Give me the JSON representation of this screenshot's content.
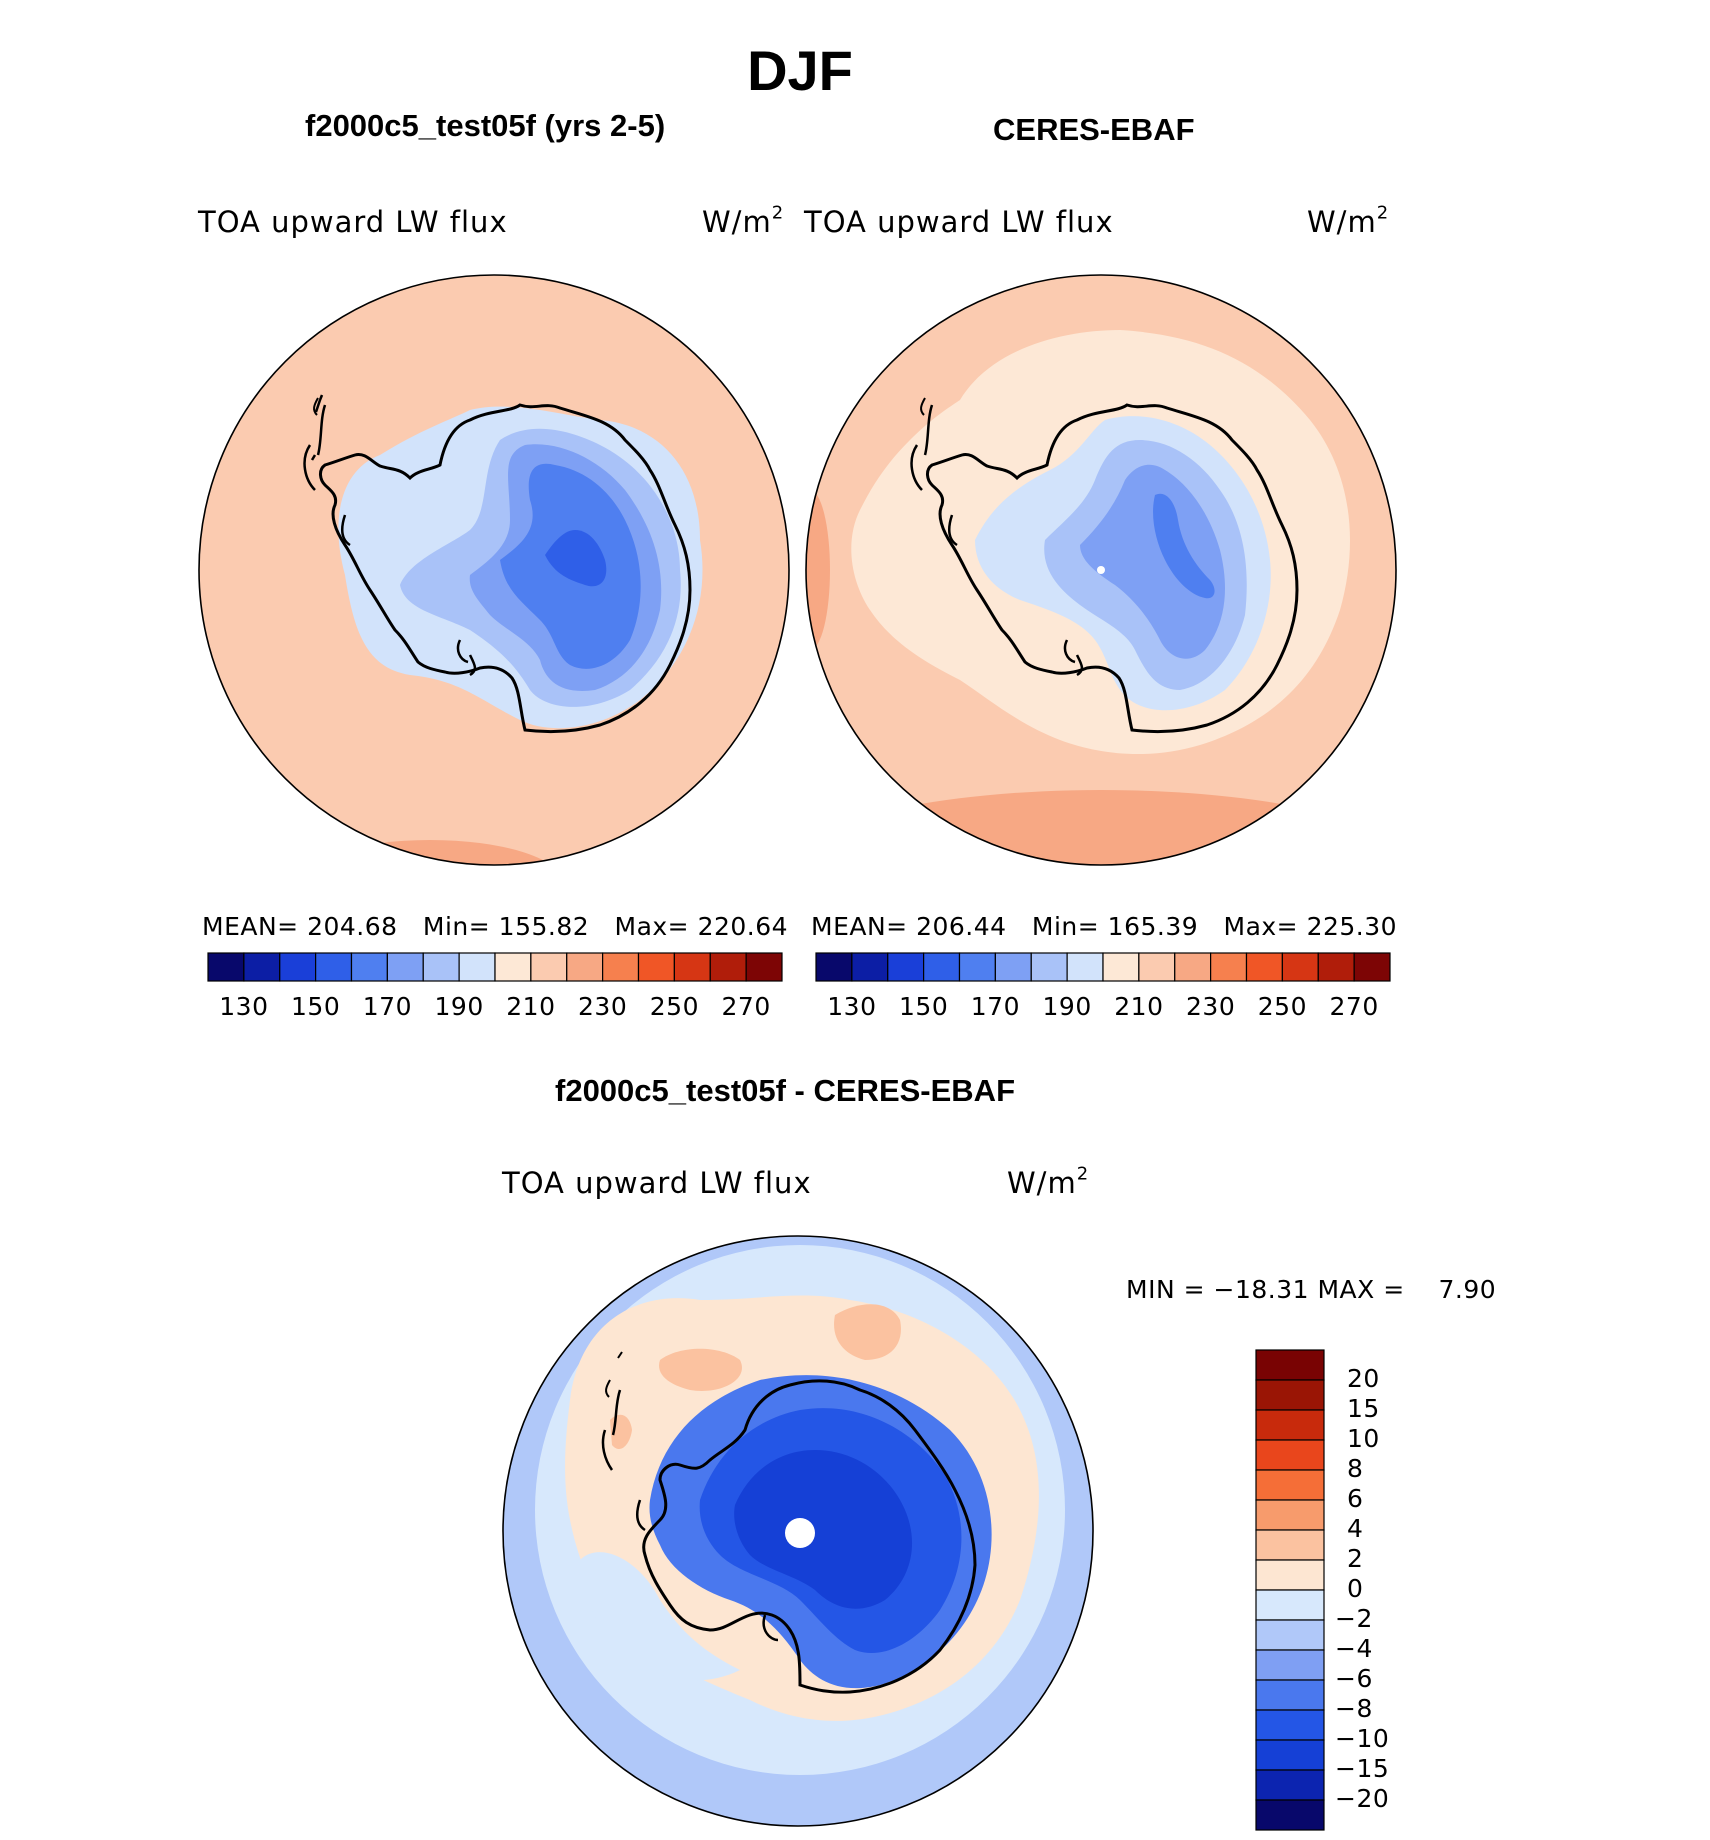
{
  "figure": {
    "title": "DJF"
  },
  "panels": [
    {
      "id": "model",
      "title": "f2000c5_test05f (yrs 2-5)",
      "variable": "TOA upward LW flux",
      "units": "W/m",
      "units_sup": "2",
      "stats": {
        "mean_label": "MEAN=",
        "mean": "204.68",
        "min_label": "Min=",
        "min": "155.82",
        "max_label": "Max=",
        "max": "220.64"
      }
    },
    {
      "id": "obs",
      "title": "CERES-EBAF",
      "variable": "TOA upward LW flux",
      "units": "W/m",
      "units_sup": "2",
      "stats": {
        "mean_label": "MEAN=",
        "mean": "206.44",
        "min_label": "Min=",
        "min": "165.39",
        "max_label": "Max=",
        "max": "225.30"
      }
    },
    {
      "id": "diff",
      "title": "f2000c5_test05f - CERES-EBAF",
      "variable": "TOA upward LW flux",
      "units": "W/m",
      "units_sup": "2",
      "stats": {
        "min_label": "MIN =",
        "min": "−18.31",
        "max_label": "MAX =",
        "max": "7.90"
      }
    }
  ],
  "colorbar_abs": {
    "colors": [
      "#08086b",
      "#0c1ea5",
      "#1a3fd8",
      "#2f5fe8",
      "#4f7ff0",
      "#7ea0f4",
      "#a9c2f8",
      "#d2e3fb",
      "#fde8d6",
      "#fbcbb0",
      "#f7a884",
      "#f6804e",
      "#f05626",
      "#d63614",
      "#b01d0a",
      "#7d0505"
    ],
    "tick_labels": [
      "130",
      "150",
      "170",
      "190",
      "210",
      "230",
      "250",
      "270"
    ]
  },
  "colorbar_diff": {
    "colors": [
      "#08086b",
      "#0c24b0",
      "#1540d6",
      "#2456e6",
      "#4a78ee",
      "#7f9ff3",
      "#b0c8f9",
      "#d7e8fc",
      "#fde6d2",
      "#fbc2a0",
      "#f79b6c",
      "#f56e37",
      "#e9461c",
      "#c82a0c",
      "#9a1505",
      "#790303"
    ],
    "tick_labels": [
      "−20",
      "−15",
      "−10",
      "−8",
      "−6",
      "−4",
      "−2",
      "0",
      "2",
      "4",
      "6",
      "8",
      "10",
      "15",
      "20"
    ]
  },
  "map_colors": {
    "ocean_abs": "#fbcbb0",
    "ocean_abs_warm": "#f7a884",
    "ocean_abs_light": "#fde8d6",
    "ice_l1": "#d2e3fb",
    "ice_l2": "#a9c2f8",
    "ice_l3": "#7ea0f4",
    "ice_l4": "#4f7ff0",
    "ice_l5": "#2f5fe8",
    "diff_outer": "#b0c8f9",
    "diff_mid": "#d7e8fc",
    "diff_warm": "#fde6d2",
    "diff_warm2": "#fbc2a0",
    "diff_land1": "#4a78ee",
    "diff_land2": "#2456e6",
    "diff_land3": "#1540d6",
    "coast": "#000000"
  }
}
